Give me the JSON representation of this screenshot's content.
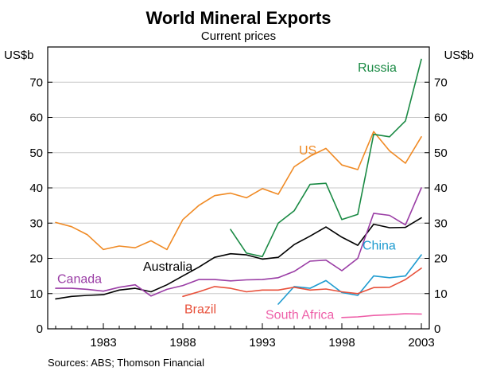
{
  "chart_data": {
    "type": "line",
    "title": "World Mineral Exports",
    "subtitle": "Current prices",
    "ylabel_left": "US$b",
    "ylabel_right": "US$b",
    "source": "Sources: ABS; Thomson Financial",
    "xlim": [
      1979.5,
      2003.5
    ],
    "ylim": [
      0,
      80
    ],
    "yticks": [
      0,
      10,
      20,
      30,
      40,
      50,
      60,
      70
    ],
    "xticks": [
      1983,
      1988,
      1993,
      1998,
      2003
    ],
    "grid": true,
    "series": [
      {
        "name": "US",
        "color": "#f08a24",
        "label_position": "mid",
        "x": [
          1980,
          1981,
          1982,
          1983,
          1984,
          1985,
          1986,
          1987,
          1988,
          1989,
          1990,
          1991,
          1992,
          1993,
          1994,
          1995,
          1996,
          1997,
          1998,
          1999,
          2000,
          2001,
          2002,
          2003
        ],
        "values": [
          30.2,
          29.0,
          26.7,
          22.5,
          23.5,
          23.0,
          25.0,
          22.5,
          31.0,
          35.0,
          37.8,
          38.5,
          37.2,
          39.8,
          38.2,
          46.0,
          49.0,
          51.2,
          46.5,
          45.2,
          56.0,
          50.5,
          47.0,
          54.5
        ]
      },
      {
        "name": "Russia",
        "color": "#1a8a44",
        "label_position": "end",
        "x": [
          1991,
          1992,
          1993,
          1994,
          1995,
          1996,
          1997,
          1998,
          1999,
          2000,
          2001,
          2002,
          2003
        ],
        "values": [
          28.2,
          21.5,
          20.5,
          30.0,
          33.5,
          41.0,
          41.3,
          31.0,
          32.5,
          55.2,
          54.5,
          59.0,
          76.5
        ]
      },
      {
        "name": "Australia",
        "color": "#000000",
        "label_position": "mid",
        "x": [
          1980,
          1981,
          1982,
          1983,
          1984,
          1985,
          1986,
          1987,
          1988,
          1989,
          1990,
          1991,
          1992,
          1993,
          1994,
          1995,
          1996,
          1997,
          1998,
          1999,
          2000,
          2001,
          2002,
          2003
        ],
        "values": [
          8.5,
          9.2,
          9.5,
          9.7,
          11.0,
          11.5,
          10.5,
          12.5,
          15.0,
          17.5,
          20.3,
          21.3,
          21.0,
          19.8,
          20.3,
          23.9,
          26.3,
          28.9,
          26.0,
          23.7,
          29.7,
          28.7,
          28.8,
          31.5
        ]
      },
      {
        "name": "Canada",
        "color": "#9a3da5",
        "label_position": "start",
        "x": [
          1980,
          1981,
          1982,
          1983,
          1984,
          1985,
          1986,
          1987,
          1988,
          1989,
          1990,
          1991,
          1992,
          1993,
          1994,
          1995,
          1996,
          1997,
          1998,
          1999,
          2000,
          2001,
          2002,
          2003
        ],
        "values": [
          11.5,
          11.5,
          11.2,
          10.7,
          11.8,
          12.5,
          9.3,
          11.2,
          12.3,
          14.0,
          14.0,
          13.6,
          13.9,
          14.0,
          14.5,
          16.3,
          19.2,
          19.5,
          16.5,
          20.0,
          32.8,
          32.2,
          29.5,
          40.0
        ]
      },
      {
        "name": "China",
        "color": "#1e9bd0",
        "label_position": "end",
        "x": [
          1994,
          1995,
          1996,
          1997,
          1998,
          1999,
          2000,
          2001,
          2002,
          2003
        ],
        "values": [
          7.0,
          12.0,
          11.5,
          13.7,
          10.3,
          9.5,
          15.0,
          14.5,
          15.0,
          21.0
        ]
      },
      {
        "name": "Brazil",
        "color": "#e8503a",
        "label_position": "mid",
        "x": [
          1988,
          1989,
          1990,
          1991,
          1992,
          1993,
          1994,
          1995,
          1996,
          1997,
          1998,
          1999,
          2000,
          2001,
          2002,
          2003
        ],
        "values": [
          9.2,
          10.5,
          12.0,
          11.5,
          10.5,
          11.0,
          11.0,
          11.8,
          11.0,
          11.3,
          10.5,
          10.0,
          11.7,
          11.8,
          14.0,
          17.2
        ]
      },
      {
        "name": "South Africa",
        "color": "#ee5fa8",
        "label_position": "mid",
        "x": [
          1998,
          1999,
          2000,
          2001,
          2002,
          2003
        ],
        "values": [
          3.2,
          3.4,
          3.8,
          4.0,
          4.3,
          4.2
        ]
      }
    ]
  }
}
